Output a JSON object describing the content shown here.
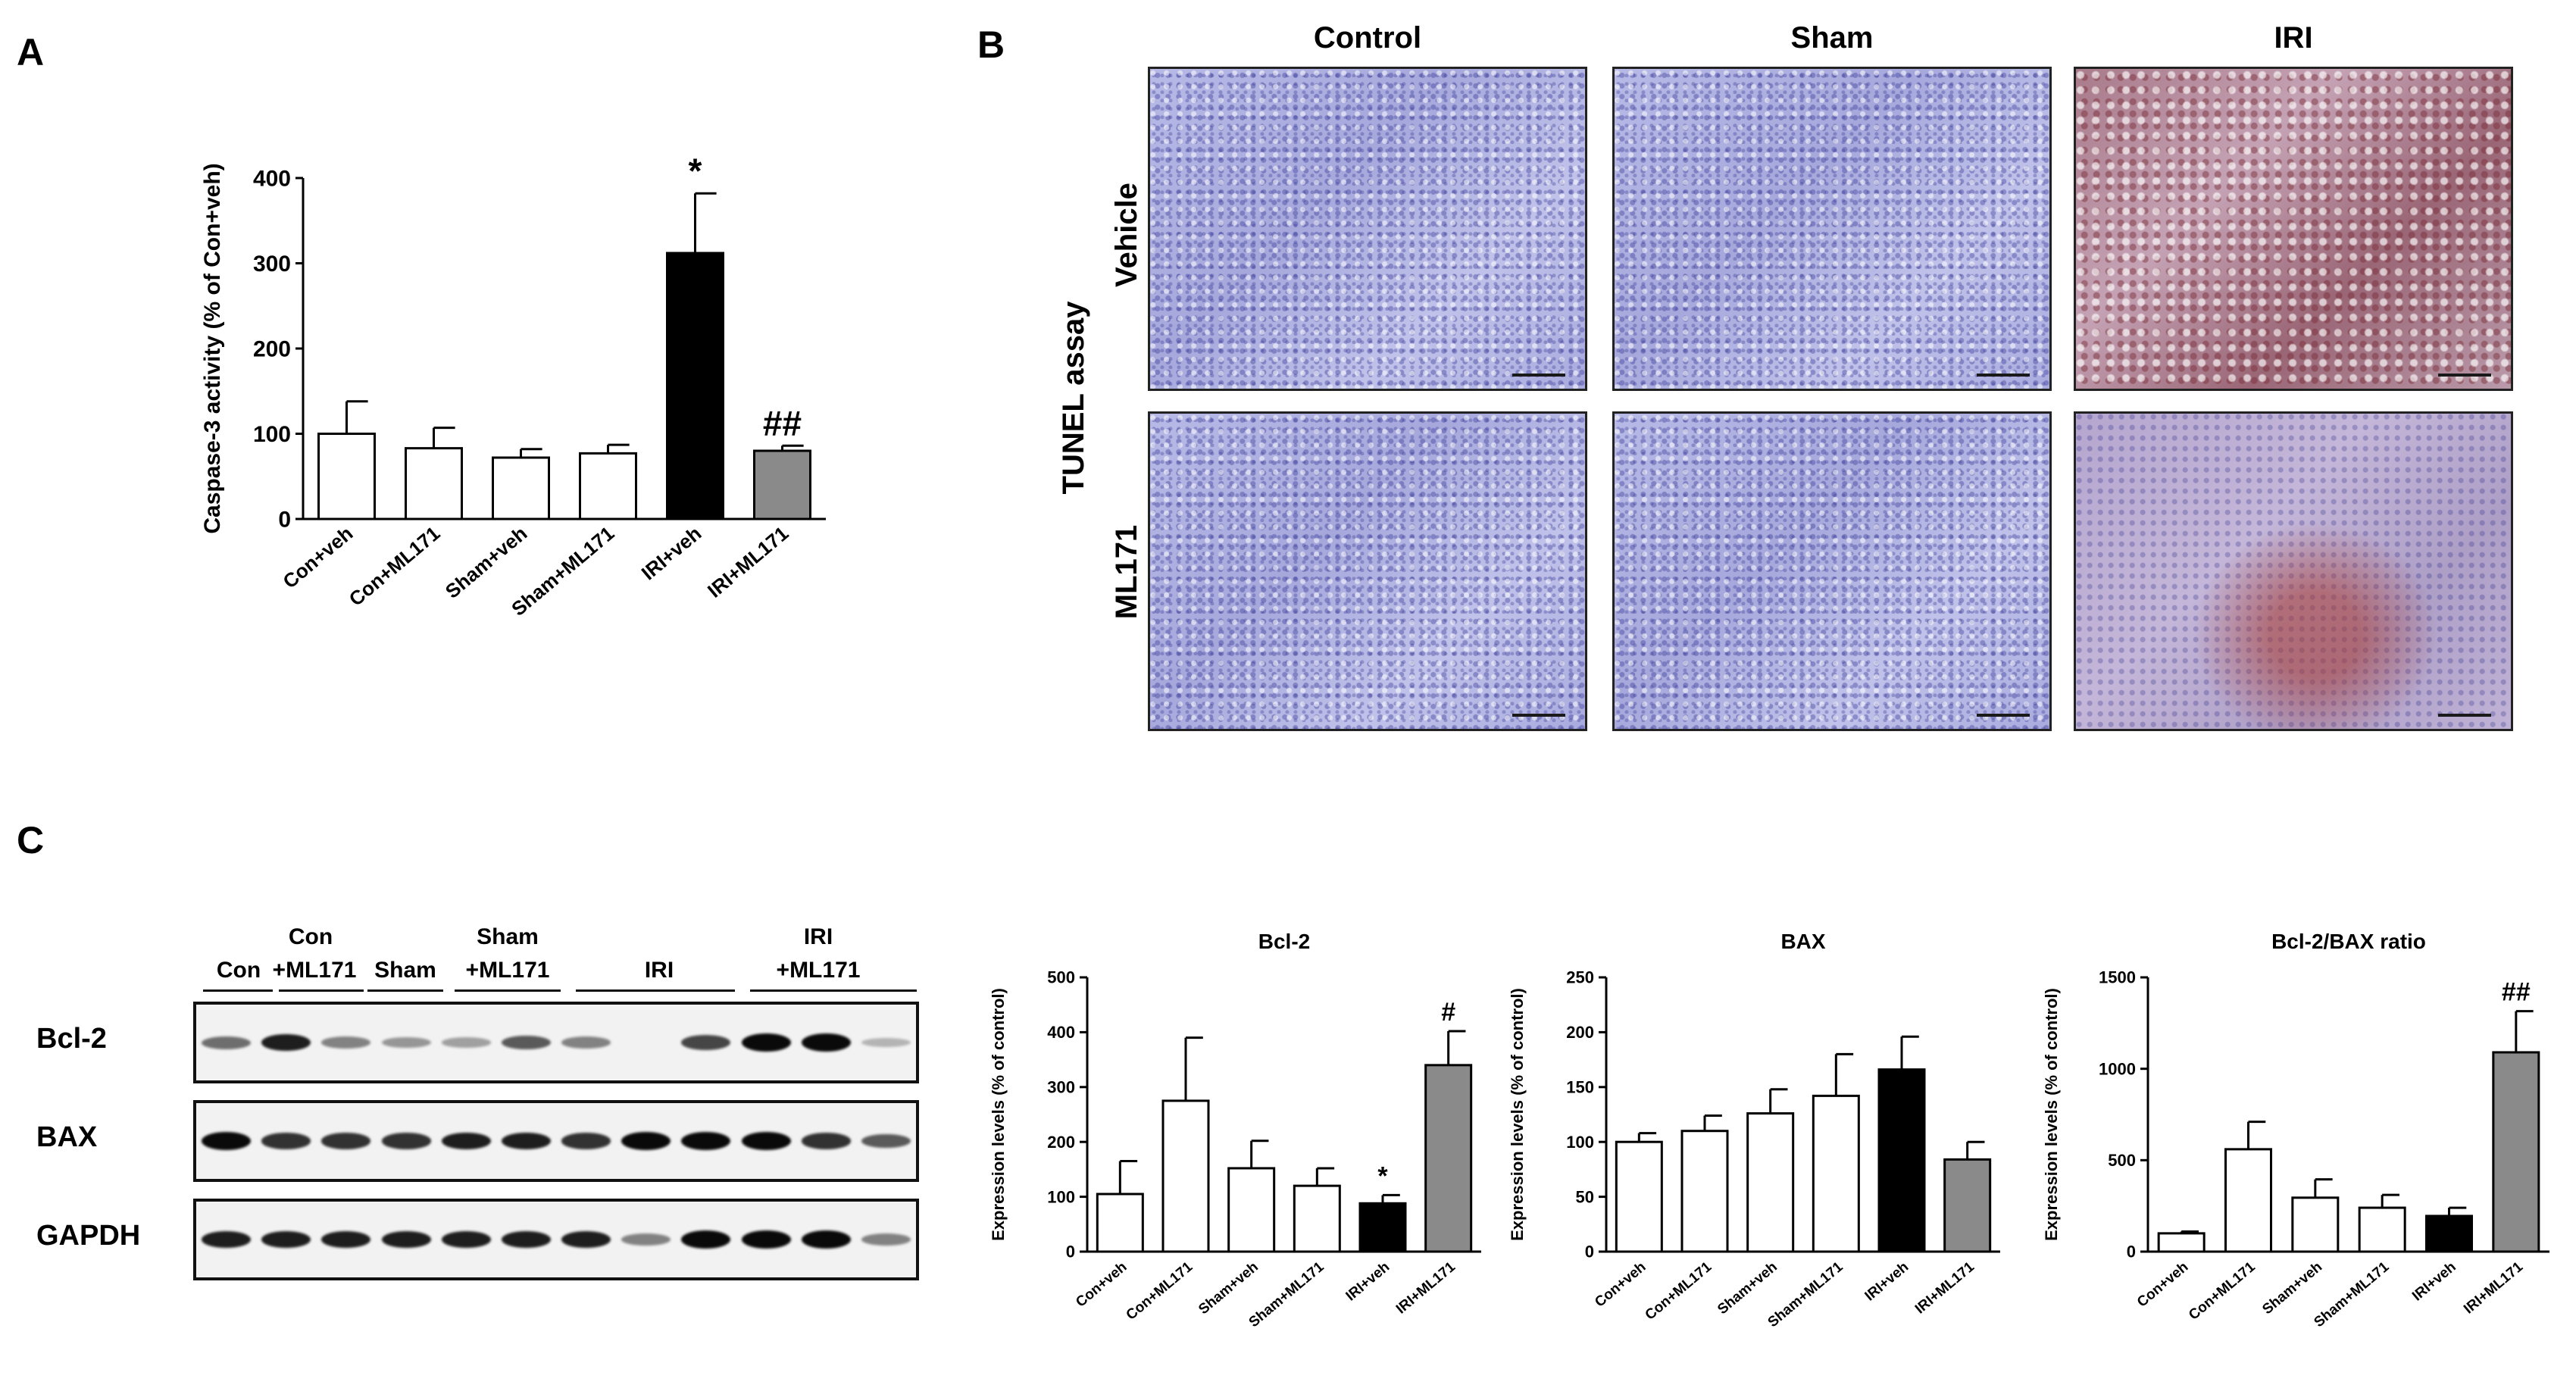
{
  "panels": {
    "a": "A",
    "b": "B",
    "c": "C"
  },
  "panel_b": {
    "columns": [
      "Control",
      "Sham",
      "IRI"
    ],
    "rows": [
      "Vehicle",
      "ML171"
    ],
    "side_label": "TUNEL assay"
  },
  "panel_c_blot": {
    "lanes_top": [
      "Con",
      "Sham",
      "IRI"
    ],
    "lanes_bottom": [
      "Con",
      "+ML171",
      "Sham",
      "+ML171",
      "IRI",
      "+ML171"
    ],
    "blots": [
      "Bcl-2",
      "BAX",
      "GAPDH"
    ],
    "band_intensity": {
      "Bcl-2": [
        0.5,
        0.9,
        0.4,
        0.3,
        0.25,
        0.6,
        0.4,
        0.0,
        0.7,
        1.0,
        1.0,
        0.15
      ],
      "BAX": [
        1.0,
        0.8,
        0.8,
        0.8,
        0.9,
        0.9,
        0.8,
        1.0,
        1.0,
        1.0,
        0.8,
        0.6
      ],
      "GAPDH": [
        0.9,
        0.9,
        0.9,
        0.9,
        0.9,
        0.9,
        0.9,
        0.4,
        1.0,
        1.0,
        1.0,
        0.4
      ]
    }
  },
  "colors": {
    "white_bar": "#ffffff",
    "black_bar": "#000000",
    "gray_bar": "#8a8a8a",
    "axis": "#000000"
  },
  "chart_data": [
    {
      "id": "caspase3",
      "type": "bar",
      "title": "",
      "ylabel": "Caspase-3 activity (% of Con+veh)",
      "ylim": [
        0,
        400
      ],
      "yticks": [
        0,
        100,
        200,
        300,
        400
      ],
      "categories": [
        "Con+veh",
        "Con+ML171",
        "Sham+veh",
        "Sham+ML171",
        "IRI+veh",
        "IRI+ML171"
      ],
      "values": [
        100,
        83,
        72,
        77,
        312,
        80
      ],
      "errors": [
        38,
        24,
        10,
        10,
        70,
        6
      ],
      "fills": [
        "white",
        "white",
        "white",
        "white",
        "black",
        "gray"
      ],
      "annotations": [
        "",
        "",
        "",
        "",
        "*",
        "##"
      ]
    },
    {
      "id": "bcl2",
      "type": "bar",
      "title": "Bcl-2",
      "ylabel": "Expression levels (% of control)",
      "ylim": [
        0,
        500
      ],
      "yticks": [
        0,
        100,
        200,
        300,
        400,
        500
      ],
      "categories": [
        "Con+veh",
        "Con+ML171",
        "Sham+veh",
        "Sham+ML171",
        "IRI+veh",
        "IRI+ML171"
      ],
      "values": [
        105,
        275,
        152,
        120,
        88,
        340
      ],
      "errors": [
        60,
        115,
        50,
        32,
        15,
        62
      ],
      "fills": [
        "white",
        "white",
        "white",
        "white",
        "black",
        "gray"
      ],
      "annotations": [
        "",
        "",
        "",
        "",
        "*",
        "#"
      ]
    },
    {
      "id": "bax",
      "type": "bar",
      "title": "BAX",
      "ylabel": "Expression levels (% of control)",
      "ylim": [
        0,
        250
      ],
      "yticks": [
        0,
        50,
        100,
        150,
        200,
        250
      ],
      "categories": [
        "Con+veh",
        "Con+ML171",
        "Sham+veh",
        "Sham+ML171",
        "IRI+veh",
        "IRI+ML171"
      ],
      "values": [
        100,
        110,
        126,
        142,
        166,
        84
      ],
      "errors": [
        8,
        14,
        22,
        38,
        30,
        16
      ],
      "fills": [
        "white",
        "white",
        "white",
        "white",
        "black",
        "gray"
      ],
      "annotations": [
        "",
        "",
        "",
        "",
        "",
        ""
      ]
    },
    {
      "id": "ratio",
      "type": "bar",
      "title": "Bcl-2/BAX ratio",
      "ylabel": "Expression levels (% of control)",
      "ylim": [
        0,
        1500
      ],
      "yticks": [
        0,
        500,
        1000,
        1500
      ],
      "categories": [
        "Con+veh",
        "Con+ML171",
        "Sham+veh",
        "Sham+ML171",
        "IRI+veh",
        "IRI+ML171"
      ],
      "values": [
        100,
        560,
        295,
        240,
        195,
        1090
      ],
      "errors": [
        10,
        150,
        100,
        70,
        45,
        225
      ],
      "fills": [
        "white",
        "white",
        "white",
        "white",
        "black",
        "gray"
      ],
      "annotations": [
        "",
        "",
        "",
        "",
        "",
        "##"
      ]
    }
  ]
}
